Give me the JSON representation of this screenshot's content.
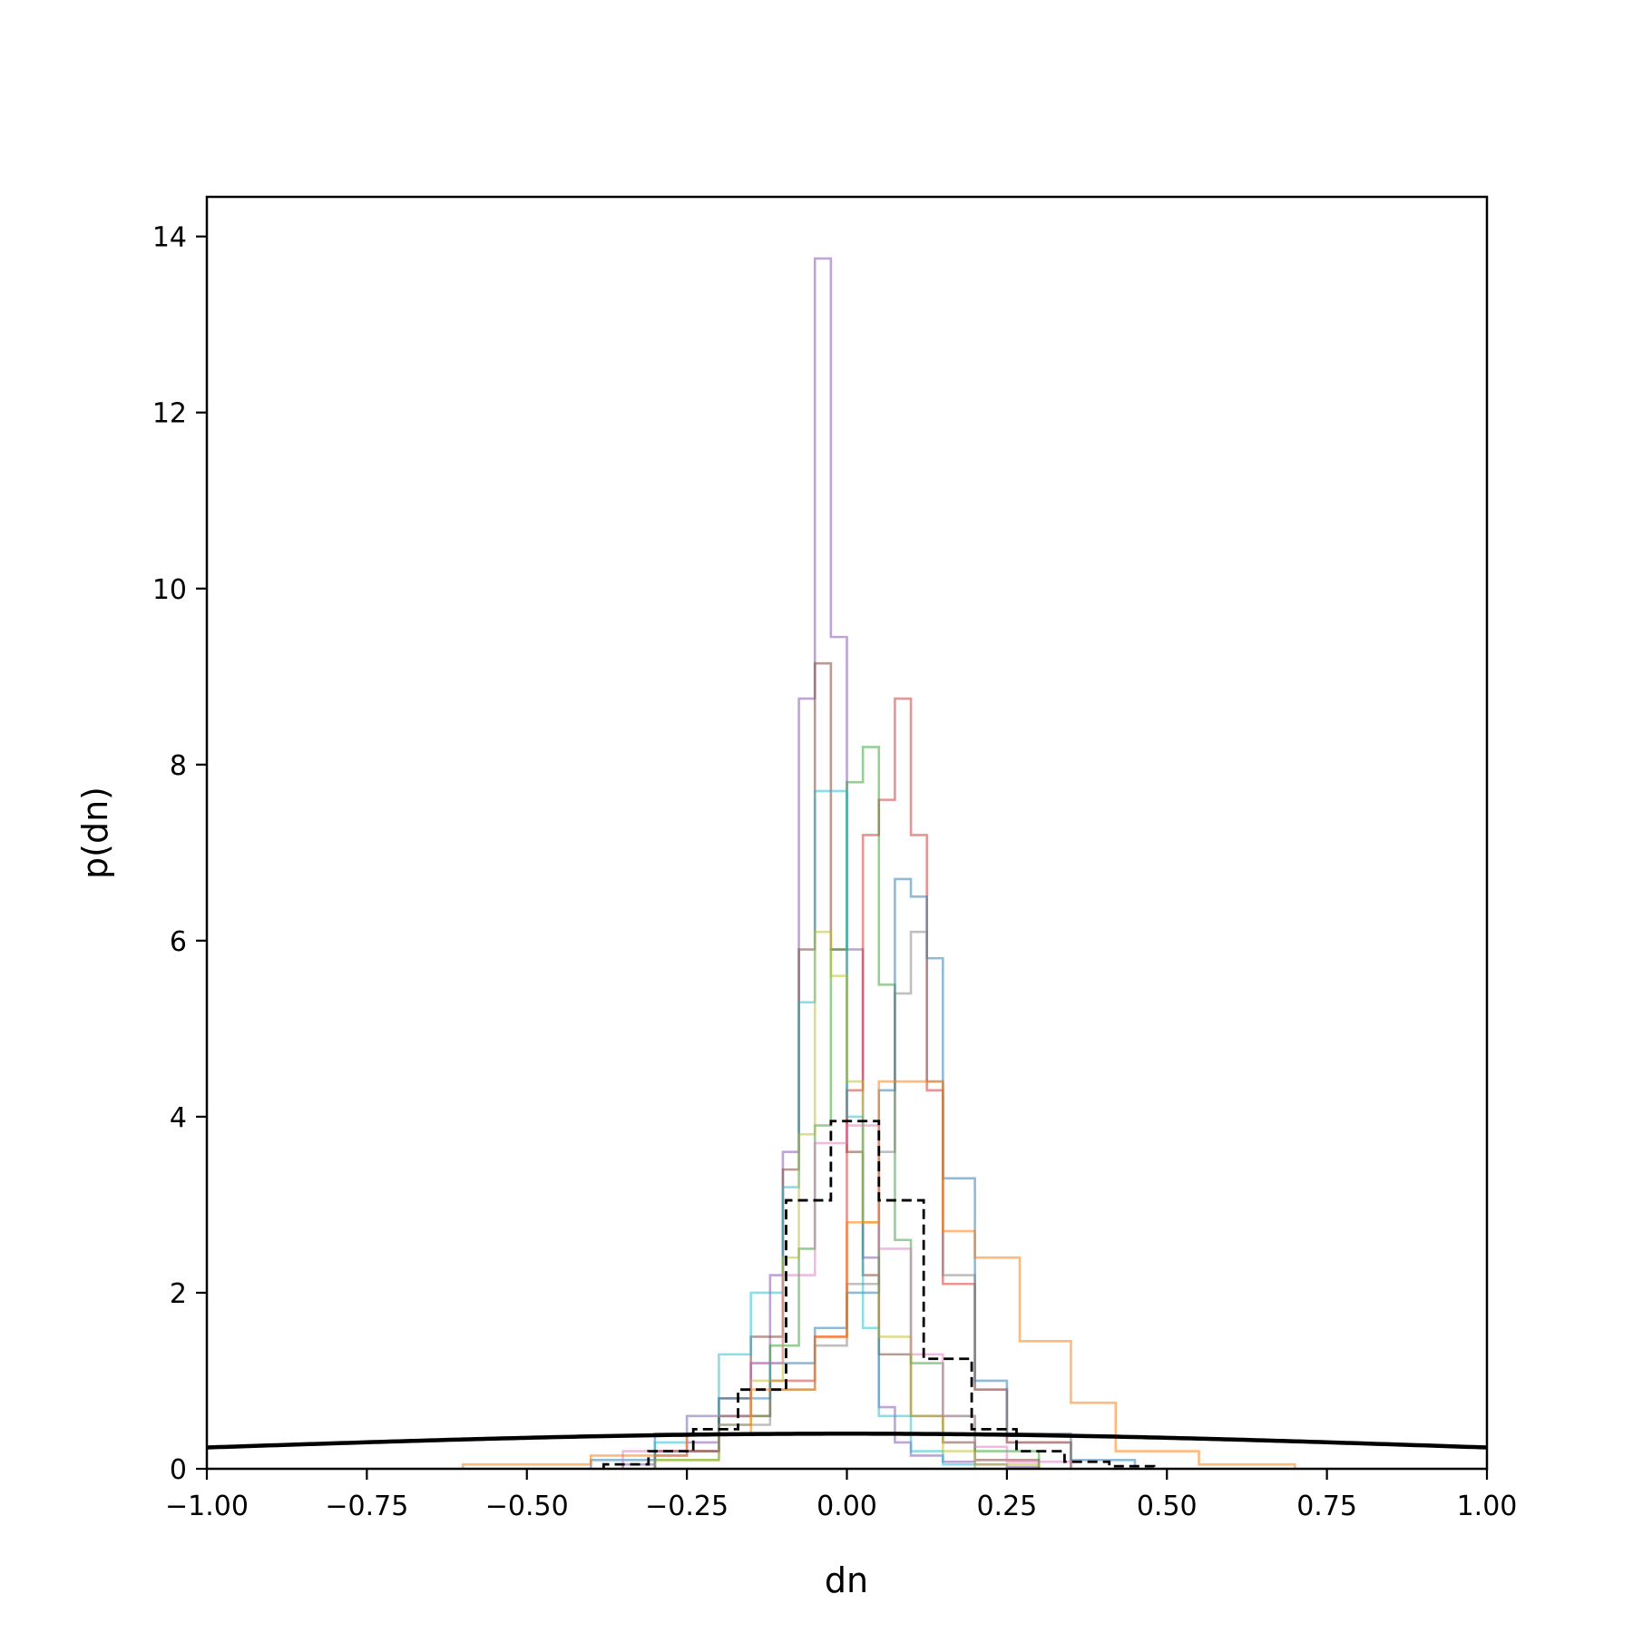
{
  "chart_data": {
    "type": "histogram",
    "title": "",
    "xlabel": "dn",
    "ylabel": "p(dn)",
    "xlim": [
      -1.0,
      1.0
    ],
    "ylim": [
      0,
      14.45
    ],
    "xticks": [
      -1.0,
      -0.75,
      -0.5,
      -0.25,
      0.0,
      0.25,
      0.5,
      0.75,
      1.0
    ],
    "xtick_labels": [
      "−1.00",
      "−0.75",
      "−0.50",
      "−0.25",
      "0.00",
      "0.25",
      "0.50",
      "0.75",
      "1.00"
    ],
    "yticks": [
      0,
      2,
      4,
      6,
      8,
      10,
      12,
      14
    ],
    "ytick_labels": [
      "0",
      "2",
      "4",
      "6",
      "8",
      "10",
      "12",
      "14"
    ],
    "grid": false,
    "legend": "none",
    "series": [
      {
        "style": "step",
        "color": "#9467bd",
        "opacity": 0.6,
        "edges": [
          -0.35,
          -0.3,
          -0.25,
          -0.2,
          -0.15,
          -0.12,
          -0.1,
          -0.075,
          -0.05,
          -0.025,
          0.0,
          0.025,
          0.05,
          0.075,
          0.1,
          0.15,
          0.2,
          0.25,
          0.3
        ],
        "values": [
          0.05,
          0.15,
          0.3,
          0.6,
          1.2,
          2.2,
          3.6,
          8.75,
          13.75,
          9.45,
          5.9,
          2.4,
          0.7,
          0.3,
          0.15,
          0.08,
          0.05,
          0.02
        ]
      },
      {
        "style": "step",
        "color": "#8c564b",
        "opacity": 0.6,
        "edges": [
          -0.3,
          -0.2,
          -0.15,
          -0.1,
          -0.075,
          -0.05,
          -0.025,
          0.0,
          0.025,
          0.05,
          0.1,
          0.15,
          0.2,
          0.3
        ],
        "values": [
          0.2,
          0.8,
          1.5,
          3.4,
          5.9,
          9.15,
          5.9,
          3.6,
          2.2,
          1.3,
          0.6,
          0.3,
          0.1
        ]
      },
      {
        "style": "step",
        "color": "#d62728",
        "opacity": 0.5,
        "edges": [
          -0.3,
          -0.2,
          -0.12,
          -0.05,
          0.0,
          0.025,
          0.05,
          0.075,
          0.1,
          0.125,
          0.15,
          0.2,
          0.25,
          0.35
        ],
        "values": [
          0.2,
          0.6,
          1.0,
          1.5,
          4.3,
          7.2,
          7.6,
          8.75,
          7.2,
          4.3,
          2.1,
          0.9,
          0.3
        ]
      },
      {
        "style": "step",
        "color": "#2ca02c",
        "opacity": 0.5,
        "edges": [
          -0.3,
          -0.2,
          -0.12,
          -0.075,
          -0.05,
          -0.025,
          0.0,
          0.025,
          0.05,
          0.075,
          0.1,
          0.15,
          0.2,
          0.3
        ],
        "values": [
          0.1,
          0.6,
          1.4,
          2.5,
          3.9,
          5.9,
          7.8,
          8.2,
          5.5,
          2.6,
          1.2,
          0.6,
          0.2
        ]
      },
      {
        "style": "step",
        "color": "#1f77b4",
        "opacity": 0.5,
        "edges": [
          -0.4,
          -0.3,
          -0.2,
          -0.12,
          -0.05,
          0.0,
          0.05,
          0.075,
          0.1,
          0.125,
          0.15,
          0.2,
          0.25,
          0.35,
          0.45
        ],
        "values": [
          0.1,
          0.4,
          0.8,
          1.2,
          1.6,
          2.0,
          4.3,
          6.7,
          6.5,
          5.8,
          3.3,
          1.0,
          0.4,
          0.1
        ]
      },
      {
        "style": "step",
        "color": "#17becf",
        "opacity": 0.5,
        "edges": [
          -0.3,
          -0.25,
          -0.2,
          -0.15,
          -0.1,
          -0.075,
          -0.05,
          -0.025,
          0.0,
          0.025,
          0.05,
          0.1,
          0.15,
          0.2
        ],
        "values": [
          0.3,
          0.6,
          1.3,
          2.0,
          3.2,
          5.3,
          7.7,
          7.7,
          4.0,
          1.6,
          0.6,
          0.2,
          0.05
        ]
      },
      {
        "style": "step",
        "color": "#bcbd22",
        "opacity": 0.5,
        "edges": [
          -0.3,
          -0.2,
          -0.15,
          -0.1,
          -0.075,
          -0.05,
          -0.025,
          0.0,
          0.025,
          0.05,
          0.1,
          0.15,
          0.2,
          0.3
        ],
        "values": [
          0.1,
          0.5,
          1.0,
          2.4,
          3.8,
          6.1,
          5.6,
          4.4,
          2.8,
          1.5,
          0.6,
          0.2,
          0.05
        ]
      },
      {
        "style": "step",
        "color": "#7f7f7f",
        "opacity": 0.5,
        "edges": [
          -0.3,
          -0.2,
          -0.12,
          -0.05,
          0.0,
          0.05,
          0.075,
          0.1,
          0.125,
          0.15,
          0.2,
          0.25,
          0.35
        ],
        "values": [
          0.2,
          0.5,
          0.9,
          1.4,
          2.1,
          3.6,
          5.4,
          6.1,
          4.4,
          2.2,
          0.9,
          0.3
        ]
      },
      {
        "style": "step",
        "color": "#e377c2",
        "opacity": 0.5,
        "edges": [
          -0.35,
          -0.25,
          -0.15,
          -0.1,
          -0.05,
          0.0,
          0.05,
          0.1,
          0.15,
          0.2,
          0.25,
          0.35
        ],
        "values": [
          0.2,
          0.6,
          1.2,
          2.2,
          3.7,
          3.9,
          2.5,
          1.3,
          0.6,
          0.25,
          0.08
        ]
      },
      {
        "style": "step",
        "color": "#ff7f0e",
        "opacity": 0.55,
        "edges": [
          -0.6,
          -0.4,
          -0.25,
          -0.15,
          -0.05,
          0.0,
          0.05,
          0.15,
          0.2,
          0.27,
          0.35,
          0.42,
          0.55,
          0.7
        ],
        "values": [
          0.05,
          0.15,
          0.4,
          0.9,
          1.5,
          2.8,
          4.4,
          2.7,
          2.4,
          1.45,
          0.75,
          0.2,
          0.05
        ]
      },
      {
        "style": "dashed-step",
        "color": "#000000",
        "opacity": 1.0,
        "edges": [
          -0.38,
          -0.31,
          -0.24,
          -0.17,
          -0.095,
          -0.025,
          0.05,
          0.12,
          0.195,
          0.265,
          0.34,
          0.41,
          0.48
        ],
        "values": [
          0.05,
          0.2,
          0.45,
          0.9,
          3.05,
          3.95,
          3.05,
          1.25,
          0.45,
          0.2,
          0.08,
          0.03
        ]
      },
      {
        "style": "line",
        "color": "#000000",
        "name_shown": false,
        "function": "normal_pdf",
        "mean": 0.0,
        "std": 1.0
      }
    ]
  }
}
